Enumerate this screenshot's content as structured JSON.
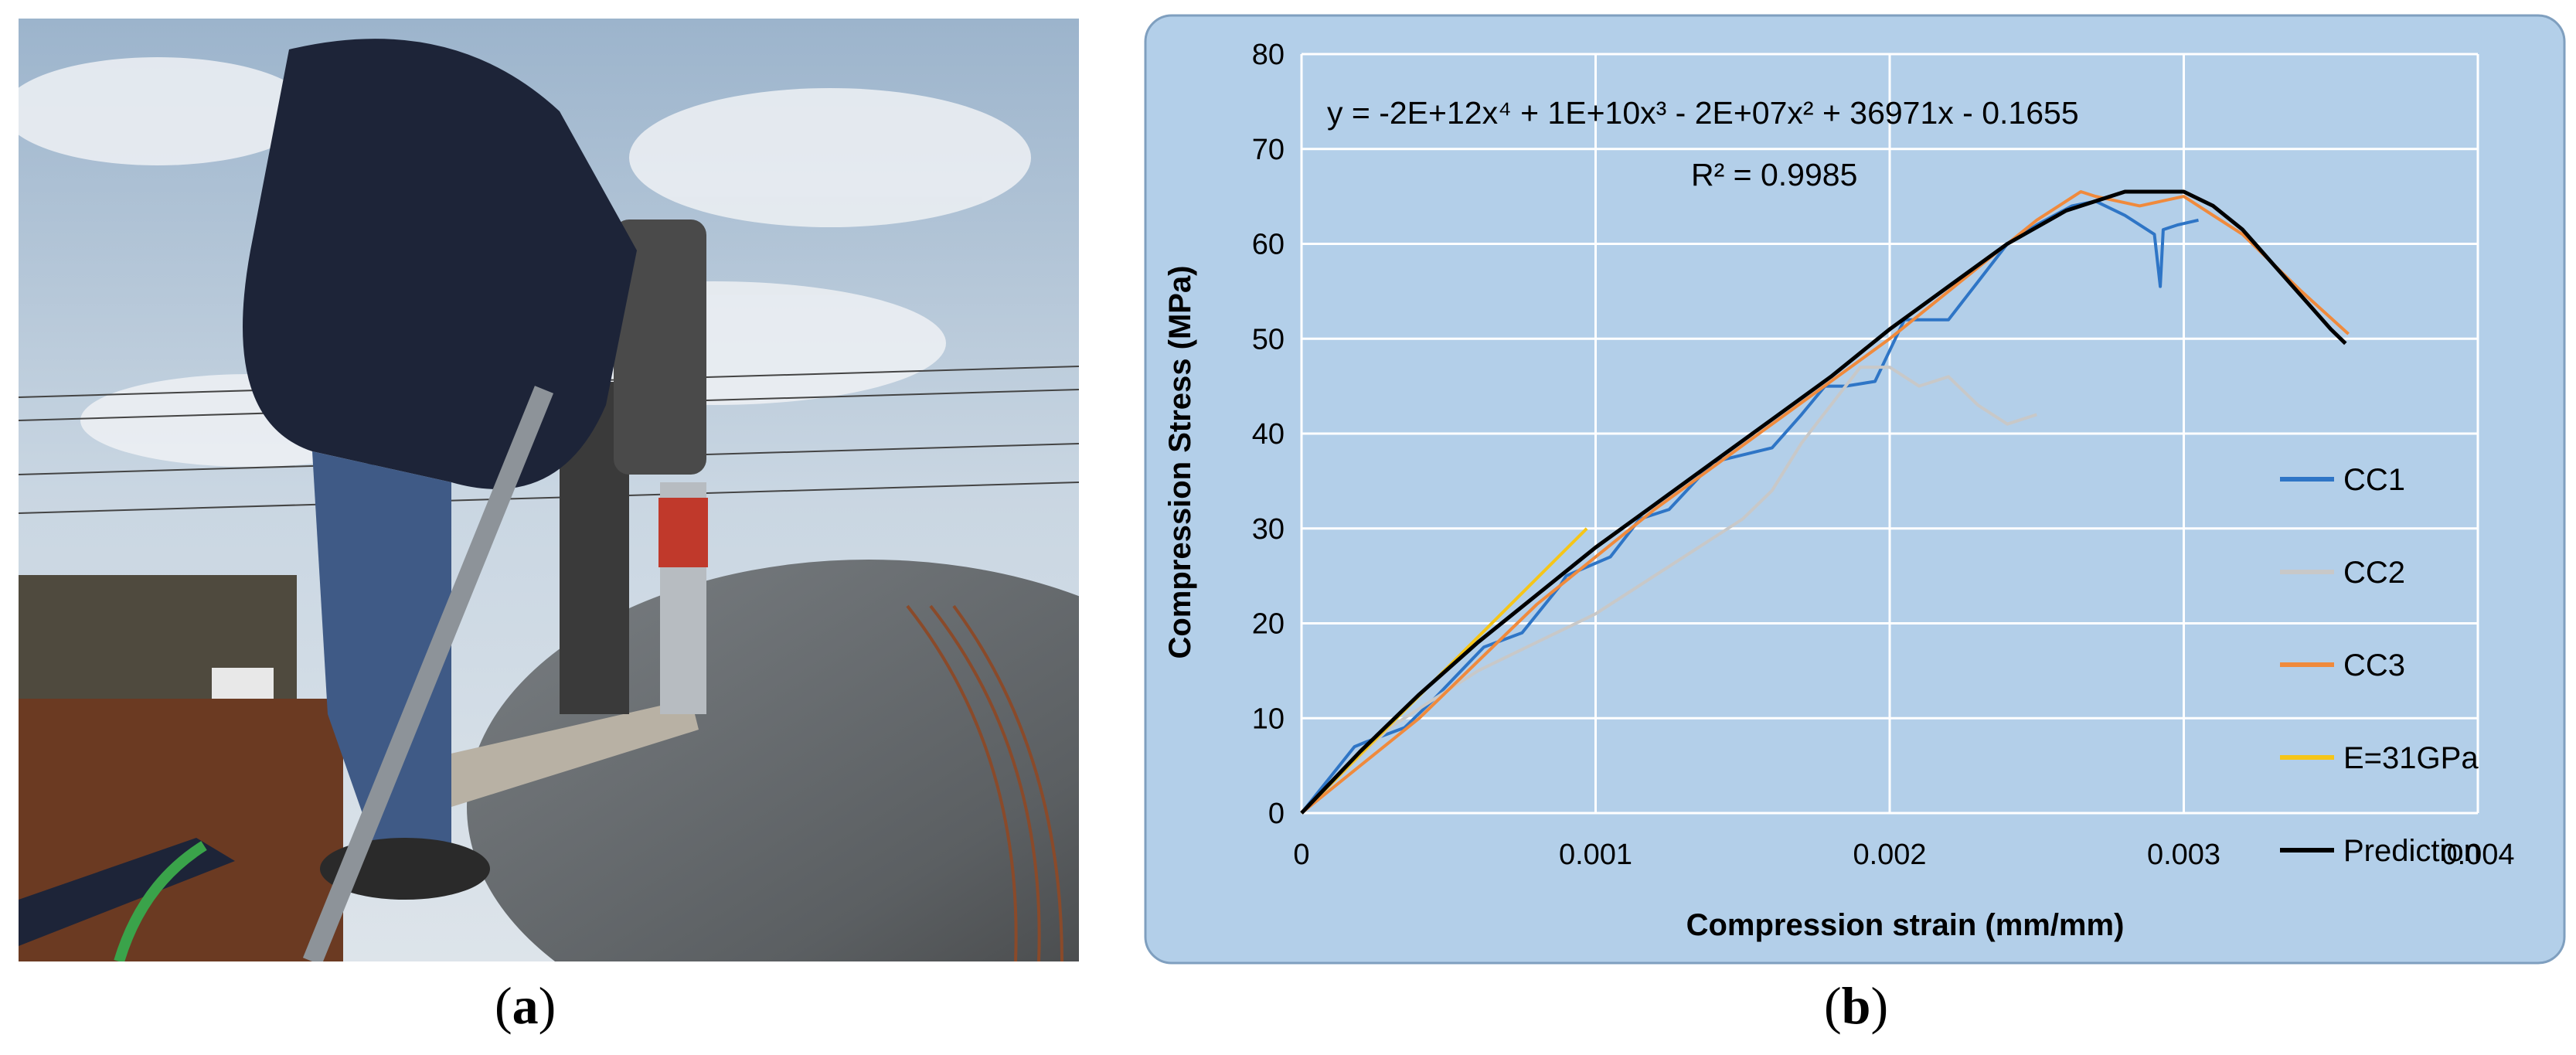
{
  "captions": {
    "a_open": "(",
    "a_letter": "a",
    "a_close": ")",
    "b_open": "(",
    "b_letter": "b",
    "b_close": ")"
  },
  "photo": {
    "description_icon": "photo-core-drilling"
  },
  "chart_data": {
    "type": "line",
    "xlabel": "Compression strain (mm/mm)",
    "ylabel": "Compression Stress (MPa)",
    "xlim": [
      0,
      0.004
    ],
    "ylim": [
      0,
      80
    ],
    "x_ticks": [
      "0",
      "0.001",
      "0.002",
      "0.003",
      "0.004"
    ],
    "y_ticks": [
      "0",
      "10",
      "20",
      "30",
      "40",
      "50",
      "60",
      "70",
      "80"
    ],
    "grid": true,
    "legend_position": "right",
    "equation": "y = -2E+12x⁴ + 1E+10x³ - 2E+07x² + 36971x - 0.1655",
    "r_squared": "R² = 0.9985",
    "background": "#b3cfe9",
    "series": [
      {
        "name": "CC1",
        "color": "#2e75c6",
        "x": [
          0,
          0.00018,
          0.00022,
          0.00035,
          0.00045,
          0.00062,
          0.00075,
          0.00088,
          0.0009,
          0.00105,
          0.00115,
          0.00125,
          0.0014,
          0.0016,
          0.0017,
          0.00178,
          0.00185,
          0.00195,
          0.00205,
          0.0022,
          0.0023,
          0.0024,
          0.0025,
          0.00262,
          0.0027,
          0.0028,
          0.0029,
          0.00292,
          0.00293,
          0.00298,
          0.00305
        ],
        "y": [
          0,
          7,
          7.5,
          9,
          12,
          17.5,
          19,
          24,
          25,
          27,
          31,
          32,
          37,
          38.5,
          42,
          45,
          45,
          45.5,
          52,
          52,
          56,
          60,
          62,
          64,
          64.5,
          63,
          61,
          55.5,
          61.5,
          62,
          62.5
        ]
      },
      {
        "name": "CC2",
        "color": "#c8c8c8",
        "x": [
          0,
          0.0003,
          0.00045,
          0.0006,
          0.0008,
          0.0009,
          0.001,
          0.0011,
          0.0012,
          0.0013,
          0.0014,
          0.0015,
          0.0016,
          0.0017,
          0.0018,
          0.0019,
          0.002,
          0.0021,
          0.0022,
          0.0023,
          0.0024,
          0.0025
        ],
        "y": [
          0,
          9,
          12,
          15,
          18,
          19.5,
          21,
          23,
          25,
          27,
          29,
          31,
          34,
          39,
          43,
          47,
          47,
          45,
          46,
          43,
          41,
          42
        ]
      },
      {
        "name": "CC3",
        "color": "#f08a3c",
        "x": [
          0,
          0.0002,
          0.0004,
          0.0006,
          0.0008,
          0.001,
          0.0012,
          0.0014,
          0.0016,
          0.0018,
          0.002,
          0.0022,
          0.0024,
          0.0025,
          0.0026,
          0.00265,
          0.0027,
          0.00285,
          0.003,
          0.0031,
          0.0032,
          0.0033,
          0.0034,
          0.00356
        ],
        "y": [
          0,
          5,
          10,
          16,
          22,
          27,
          32,
          36.5,
          41,
          45.5,
          50,
          55,
          60,
          62.5,
          64.5,
          65.5,
          65,
          64,
          65,
          63,
          61,
          58,
          55,
          50.5
        ]
      },
      {
        "name": "E=31GPa",
        "color": "#f5c518",
        "x": [
          0,
          0.00097
        ],
        "y": [
          0,
          30
        ]
      },
      {
        "name": "Prediction",
        "color": "#000000",
        "x": [
          0,
          0.0002,
          0.0004,
          0.0006,
          0.0008,
          0.001,
          0.0012,
          0.0014,
          0.0016,
          0.0018,
          0.002,
          0.0022,
          0.0024,
          0.0026,
          0.0028,
          0.003,
          0.0031,
          0.0032,
          0.0033,
          0.0034,
          0.0035,
          0.00355
        ],
        "y": [
          0,
          6.5,
          12.5,
          18,
          23,
          28,
          32.5,
          37,
          41.5,
          46,
          51,
          55.5,
          60,
          63.5,
          65.5,
          65.5,
          64,
          61.5,
          58,
          54.5,
          51,
          49.5
        ]
      }
    ]
  }
}
